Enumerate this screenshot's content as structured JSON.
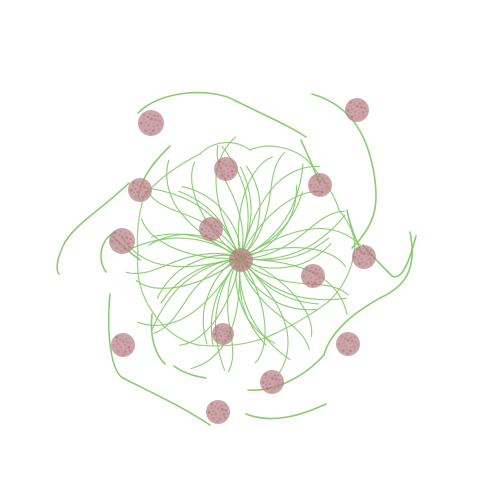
{
  "scene": {
    "background_color": "#ffffff",
    "stroke_color": "#84c96a",
    "dot_color": "#b98287",
    "dot_texture_color": "#a56c72"
  }
}
